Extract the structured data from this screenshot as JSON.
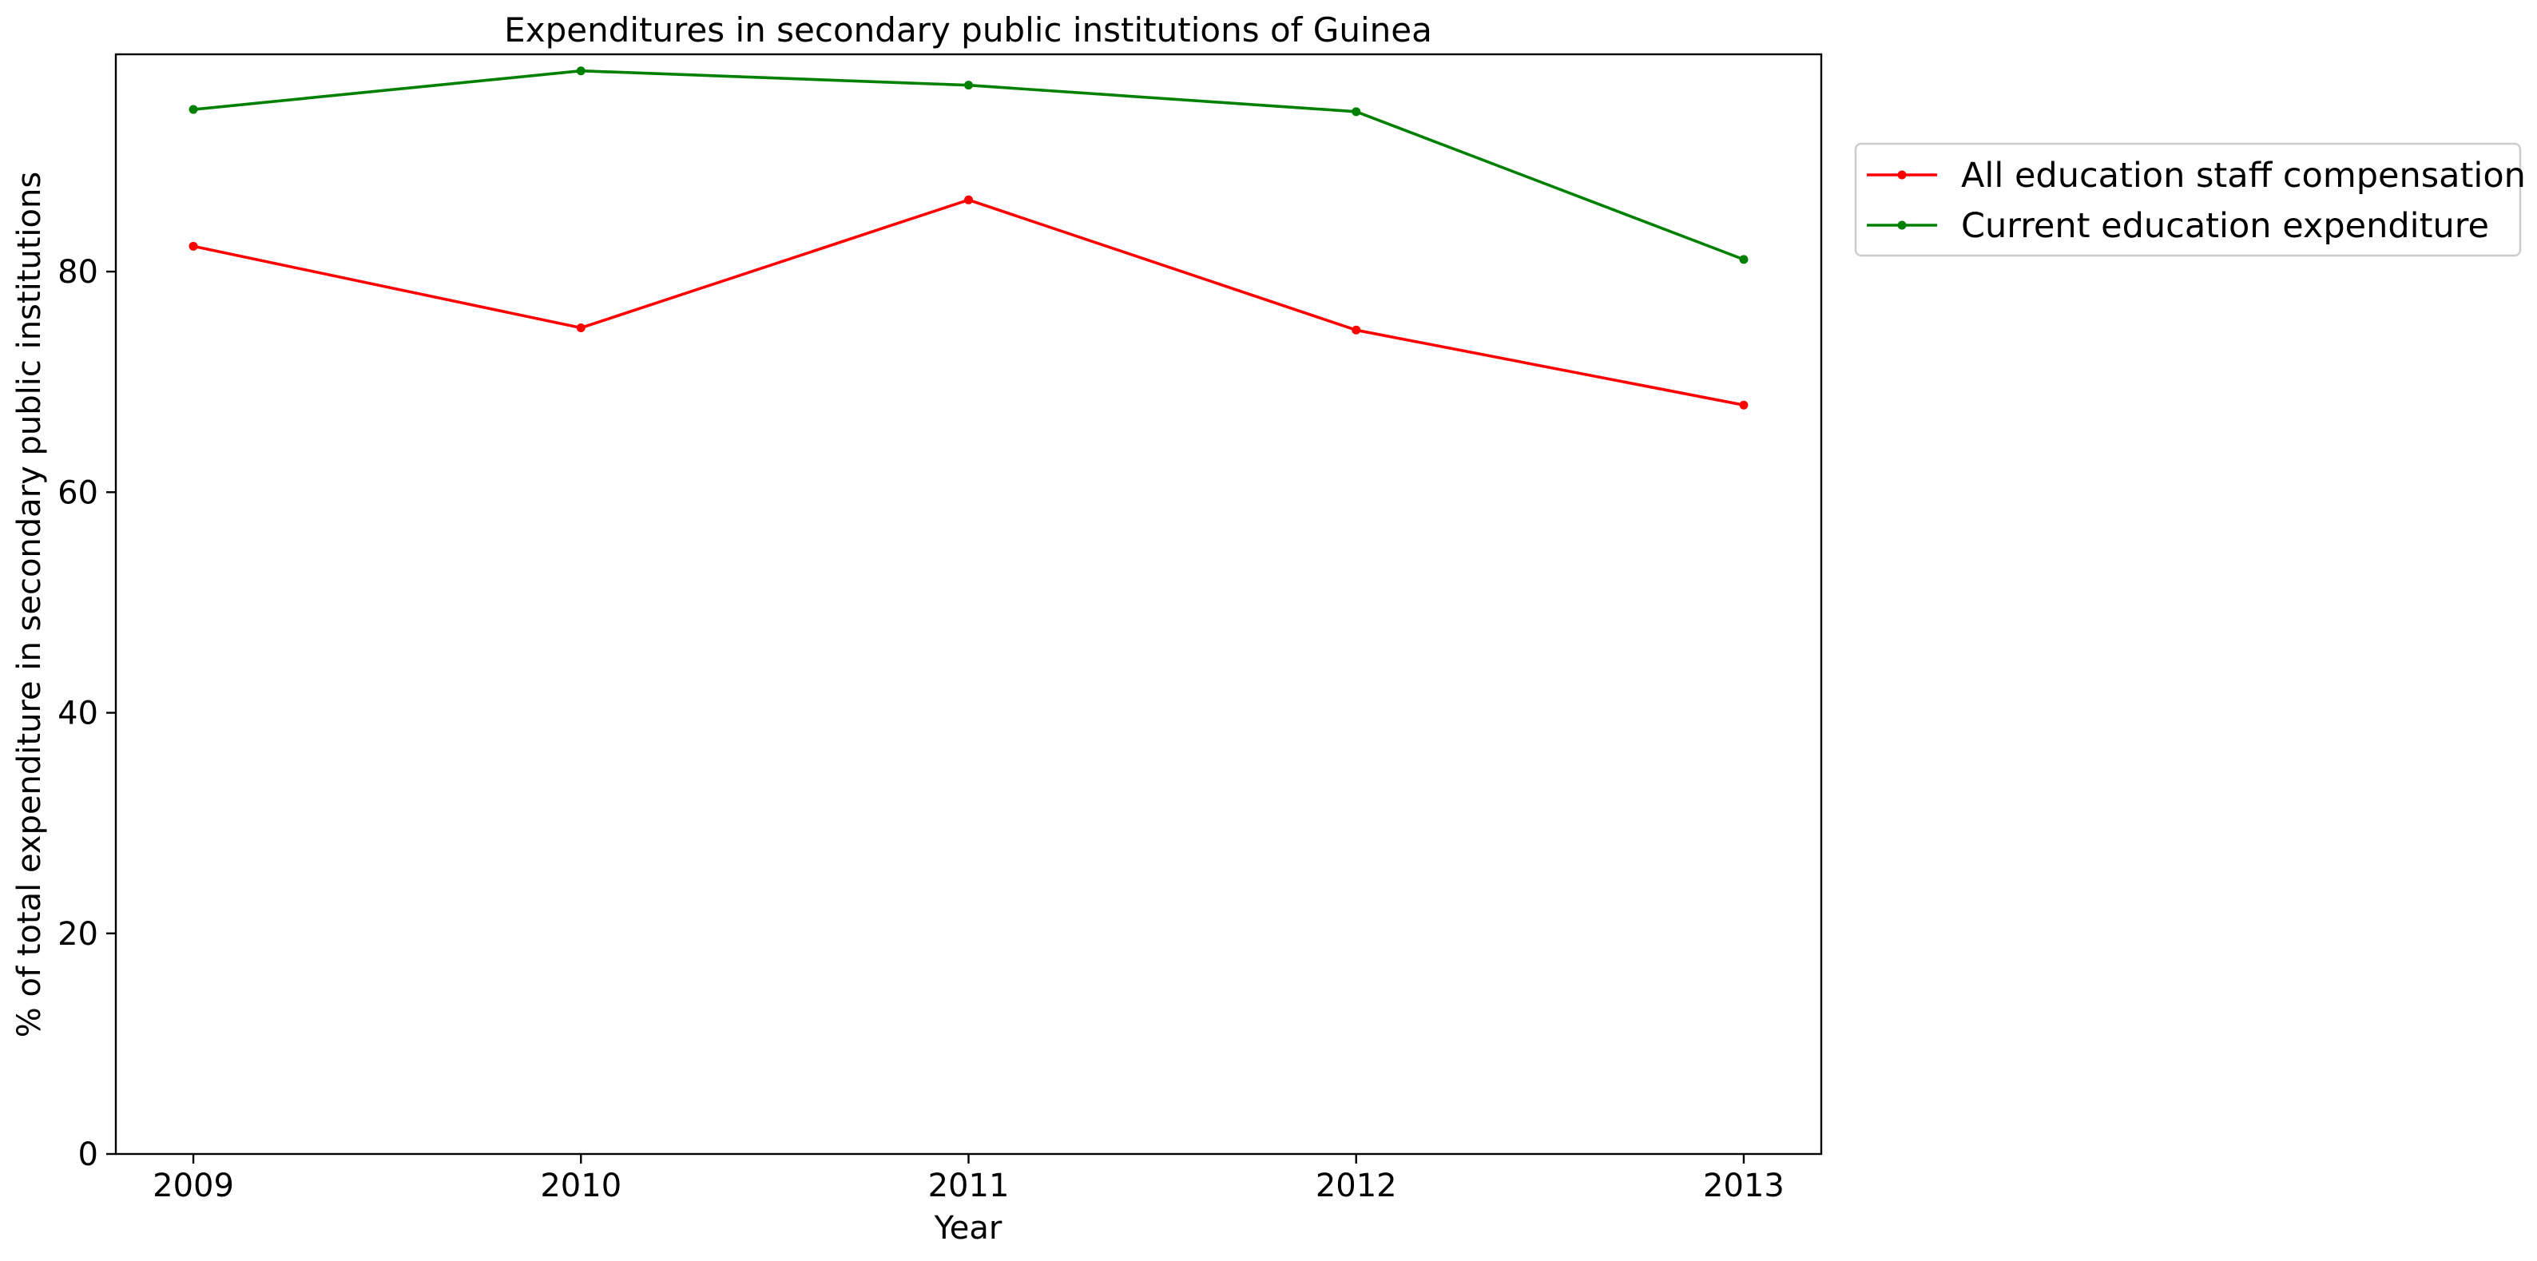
{
  "chart_data": {
    "type": "line",
    "title": "Expenditures in secondary public institutions of Guinea",
    "xlabel": "Year",
    "ylabel": "% of total expenditure in secondary public institutions",
    "x": [
      2009,
      2010,
      2011,
      2012,
      2013
    ],
    "x_tick_labels": [
      "2009",
      "2010",
      "2011",
      "2012",
      "2013"
    ],
    "y_ticks": [
      0,
      20,
      40,
      60,
      80
    ],
    "y_tick_labels": [
      "0",
      "20",
      "40",
      "60",
      "80"
    ],
    "xlim": [
      2008.8,
      2013.2
    ],
    "ylim": [
      0,
      99.7
    ],
    "grid": false,
    "legend_position": "outside right, top",
    "series": [
      {
        "name": "All education staff compensation",
        "color": "#ff0000",
        "values": [
          82.3,
          74.9,
          86.5,
          74.7,
          67.9
        ]
      },
      {
        "name": "Current education expenditure",
        "color": "#008000",
        "values": [
          94.7,
          98.2,
          96.9,
          94.5,
          81.1
        ]
      }
    ]
  }
}
